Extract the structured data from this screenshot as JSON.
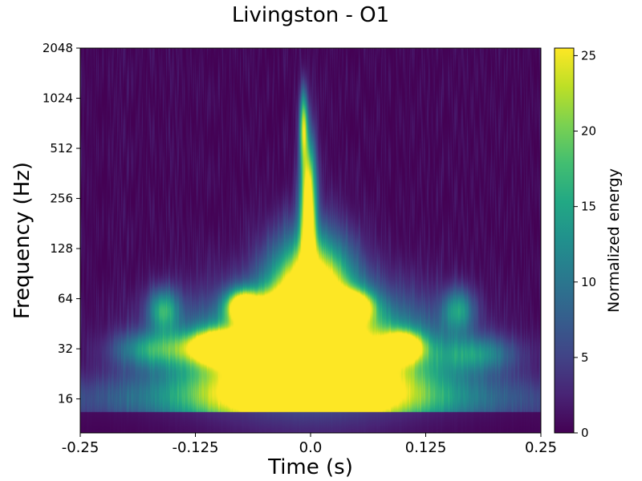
{
  "chart_data": {
    "type": "heatmap",
    "title": "Livingston - O1",
    "xlabel": "Time (s)",
    "ylabel": "Frequency (Hz)",
    "xlim": [
      -0.25,
      0.25
    ],
    "ylim": [
      10,
      2048
    ],
    "y_scale": "log2",
    "x_ticks": [
      {
        "value": -0.25,
        "label": "-0.25"
      },
      {
        "value": -0.125,
        "label": "-0.125"
      },
      {
        "value": 0.0,
        "label": "0.0"
      },
      {
        "value": 0.125,
        "label": "0.125"
      },
      {
        "value": 0.25,
        "label": "0.25"
      }
    ],
    "y_ticks": [
      {
        "value": 16,
        "label": "16"
      },
      {
        "value": 32,
        "label": "32"
      },
      {
        "value": 64,
        "label": "64"
      },
      {
        "value": 128,
        "label": "128"
      },
      {
        "value": 256,
        "label": "256"
      },
      {
        "value": 512,
        "label": "512"
      },
      {
        "value": 1024,
        "label": "1024"
      },
      {
        "value": 2048,
        "label": "2048"
      }
    ],
    "colorbar": {
      "label": "Normalized energy",
      "range": [
        0,
        25.5
      ],
      "colormap": "viridis",
      "ticks": [
        {
          "value": 0,
          "label": "0"
        },
        {
          "value": 5,
          "label": "5"
        },
        {
          "value": 10,
          "label": "10"
        },
        {
          "value": 15,
          "label": "15"
        },
        {
          "value": 20,
          "label": "20"
        },
        {
          "value": 25,
          "label": "25"
        }
      ]
    },
    "features": [
      {
        "t": 0.0,
        "f": 24,
        "dt": 0.085,
        "dlogf": 0.9,
        "energy": 40
      },
      {
        "t": 0.0,
        "f": 64,
        "dt": 0.03,
        "dlogf": 0.85,
        "energy": 34
      },
      {
        "t": -0.003,
        "f": 240,
        "dt": 0.006,
        "dlogf": 0.9,
        "energy": 30
      },
      {
        "t": -0.008,
        "f": 700,
        "dt": 0.003,
        "dlogf": 0.5,
        "energy": 20
      },
      {
        "t": -0.1,
        "f": 33,
        "dt": 0.022,
        "dlogf": 0.22,
        "energy": 30
      },
      {
        "t": 0.1,
        "f": 33,
        "dt": 0.015,
        "dlogf": 0.2,
        "energy": 26
      },
      {
        "t": -0.075,
        "f": 58,
        "dt": 0.012,
        "dlogf": 0.22,
        "energy": 24
      },
      {
        "t": 0.045,
        "f": 58,
        "dt": 0.015,
        "dlogf": 0.2,
        "energy": 24
      },
      {
        "t": -0.045,
        "f": 50,
        "dt": 0.02,
        "dlogf": 0.3,
        "energy": 18
      },
      {
        "t": -0.16,
        "f": 55,
        "dt": 0.012,
        "dlogf": 0.3,
        "energy": 14
      },
      {
        "t": 0.16,
        "f": 55,
        "dt": 0.012,
        "dlogf": 0.3,
        "energy": 12
      },
      {
        "t": -0.17,
        "f": 32,
        "dt": 0.03,
        "dlogf": 0.25,
        "energy": 12
      },
      {
        "t": 0.18,
        "f": 30,
        "dt": 0.03,
        "dlogf": 0.25,
        "energy": 10
      },
      {
        "t": 0.0,
        "f": 16,
        "dt": 0.2,
        "dlogf": 0.35,
        "energy": 10
      }
    ]
  }
}
